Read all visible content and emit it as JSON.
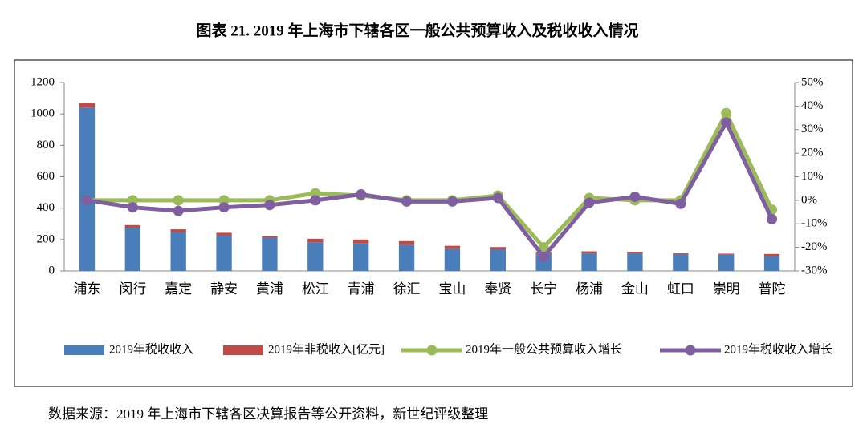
{
  "chart_data": {
    "type": "combo",
    "title": "图表 21. 2019 年上海市下辖各区一般公共预算收入及税收收入情况",
    "source": "数据来源：2019 年上海市下辖各区决算报告等公开资料，新世纪评级整理",
    "categories": [
      "浦东",
      "闵行",
      "嘉定",
      "静安",
      "黄浦",
      "松江",
      "青浦",
      "徐汇",
      "宝山",
      "奉贤",
      "长宁",
      "杨浦",
      "金山",
      "虹口",
      "崇明",
      "普陀"
    ],
    "series": [
      {
        "name": "2019年税收收入",
        "type": "bar",
        "color": "#4a7ebb",
        "values": [
          1040,
          275,
          245,
          225,
          212,
          182,
          175,
          165,
          140,
          138,
          108,
          112,
          112,
          105,
          103,
          92
        ]
      },
      {
        "name": "2019年非税收入[亿元]",
        "type": "bar",
        "color": "#be4b48",
        "values": [
          30,
          17,
          20,
          18,
          10,
          23,
          25,
          25,
          20,
          14,
          10,
          13,
          10,
          7,
          7,
          16
        ]
      },
      {
        "name": "2019年一般公共预算收入增长",
        "type": "line",
        "axis": "y2",
        "color": "#9bbb59",
        "values": [
          0,
          0,
          0,
          0,
          0,
          3,
          2,
          0,
          0,
          2,
          -20,
          1,
          0,
          0,
          37,
          -4
        ]
      },
      {
        "name": "2019年税收收入增长",
        "type": "line",
        "axis": "y2",
        "color": "#7f5fa0",
        "values": [
          0,
          -3,
          -4.5,
          -3,
          -2,
          0,
          2.5,
          -0.5,
          -0.5,
          1,
          -24,
          -1,
          1.5,
          -1.5,
          33,
          -8
        ]
      }
    ],
    "ylim": [
      0,
      1200
    ],
    "yticks": [
      0,
      200,
      400,
      600,
      800,
      1000,
      1200
    ],
    "y2lim": [
      -30,
      50
    ],
    "y2ticks": [
      {
        "value": -30,
        "label": "-30%"
      },
      {
        "value": -20,
        "label": "-20%"
      },
      {
        "value": -10,
        "label": "-10%"
      },
      {
        "value": 0,
        "label": "0%"
      },
      {
        "value": 10,
        "label": "10%"
      },
      {
        "value": 20,
        "label": "20%"
      },
      {
        "value": 30,
        "label": "30%"
      },
      {
        "value": 40,
        "label": "40%"
      },
      {
        "value": 50,
        "label": "50%"
      }
    ],
    "stacked": true,
    "legend": "bottom"
  }
}
